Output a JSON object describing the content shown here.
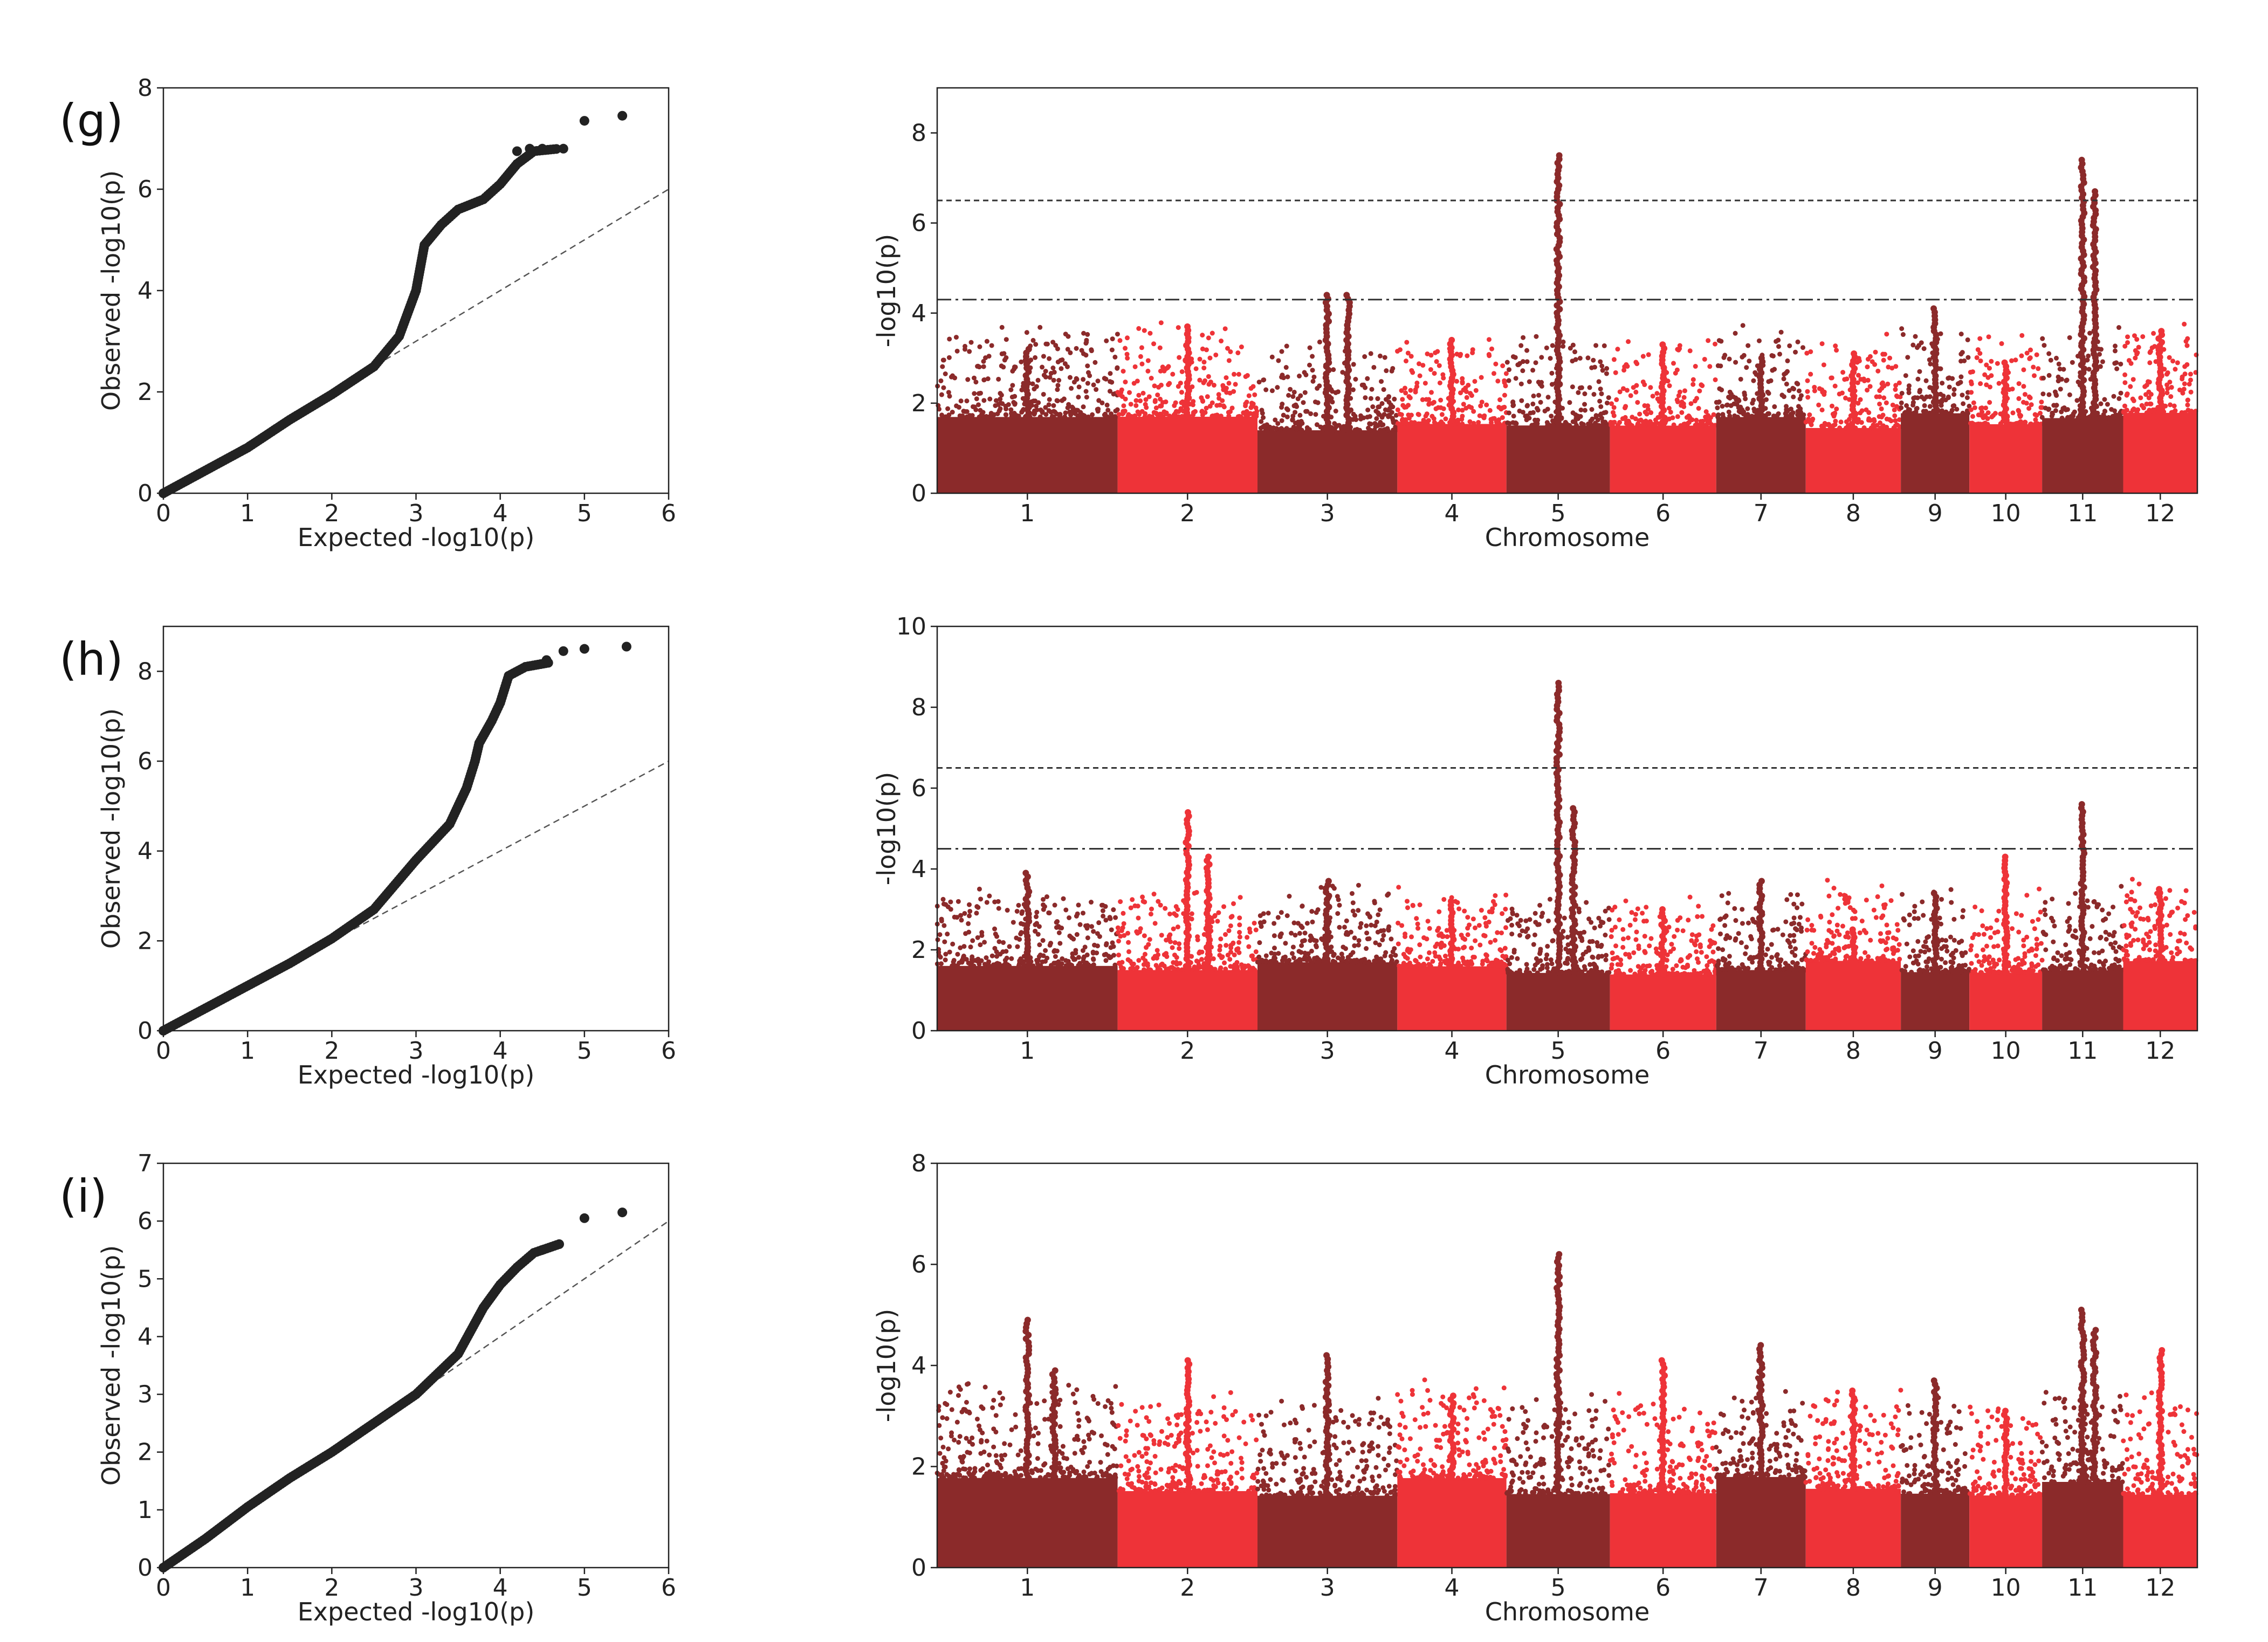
{
  "chart_data": [
    {
      "type": "scatter",
      "panel_label": "(g)",
      "kind": "qq",
      "xlabel": "Expected -log10(p)",
      "ylabel": "Observed -log10(p)",
      "xlim": [
        0,
        6
      ],
      "ylim": [
        0,
        8
      ],
      "xticks": [
        0,
        1,
        2,
        3,
        4,
        5,
        6
      ],
      "yticks": [
        0,
        2,
        4,
        6,
        8
      ],
      "curve": [
        [
          0,
          0
        ],
        [
          0.5,
          0.45
        ],
        [
          1,
          0.9
        ],
        [
          1.5,
          1.45
        ],
        [
          2,
          1.95
        ],
        [
          2.5,
          2.5
        ],
        [
          2.8,
          3.1
        ],
        [
          3.0,
          4.0
        ],
        [
          3.1,
          4.9
        ],
        [
          3.3,
          5.3
        ],
        [
          3.5,
          5.6
        ],
        [
          3.8,
          5.8
        ],
        [
          4.0,
          6.1
        ],
        [
          4.2,
          6.5
        ],
        [
          4.4,
          6.75
        ],
        [
          4.7,
          6.8
        ]
      ],
      "top_points": [
        [
          4.2,
          6.75
        ],
        [
          4.35,
          6.8
        ],
        [
          4.5,
          6.8
        ],
        [
          4.75,
          6.8
        ],
        [
          5.0,
          7.35
        ],
        [
          5.45,
          7.45
        ]
      ]
    },
    {
      "type": "scatter",
      "panel_label": "",
      "kind": "manhattan",
      "xlabel": "Chromosome",
      "ylabel": "-log10(p)",
      "ylim": [
        0,
        9
      ],
      "yticks": [
        0,
        2,
        4,
        6,
        8
      ],
      "categories": [
        "1",
        "2",
        "3",
        "4",
        "5",
        "6",
        "7",
        "8",
        "9",
        "10",
        "11",
        "12"
      ],
      "thresholds": [
        6.5,
        4.3
      ],
      "peaks": [
        {
          "chrom": 1,
          "value": 3.2
        },
        {
          "chrom": 2,
          "value": 3.7
        },
        {
          "chrom": 3,
          "value": 4.4
        },
        {
          "chrom": 3,
          "value": 4.4
        },
        {
          "chrom": 4,
          "value": 3.4
        },
        {
          "chrom": 5,
          "value": 7.5
        },
        {
          "chrom": 6,
          "value": 3.3
        },
        {
          "chrom": 7,
          "value": 3.0
        },
        {
          "chrom": 8,
          "value": 3.1
        },
        {
          "chrom": 9,
          "value": 4.1
        },
        {
          "chrom": 10,
          "value": 2.9
        },
        {
          "chrom": 11,
          "value": 7.4
        },
        {
          "chrom": 11,
          "value": 6.7
        },
        {
          "chrom": 12,
          "value": 3.6
        }
      ]
    },
    {
      "type": "scatter",
      "panel_label": "(h)",
      "kind": "qq",
      "xlabel": "Expected -log10(p)",
      "ylabel": "Observed -log10(p)",
      "xlim": [
        0,
        6
      ],
      "ylim": [
        0,
        9
      ],
      "xticks": [
        0,
        1,
        2,
        3,
        4,
        5,
        6
      ],
      "yticks": [
        0,
        2,
        4,
        6,
        8
      ],
      "curve": [
        [
          0,
          0
        ],
        [
          0.5,
          0.5
        ],
        [
          1,
          1.0
        ],
        [
          1.5,
          1.5
        ],
        [
          2,
          2.05
        ],
        [
          2.5,
          2.7
        ],
        [
          3.0,
          3.8
        ],
        [
          3.4,
          4.6
        ],
        [
          3.6,
          5.4
        ],
        [
          3.7,
          6.0
        ],
        [
          3.75,
          6.4
        ],
        [
          3.9,
          6.9
        ],
        [
          4.0,
          7.3
        ],
        [
          4.1,
          7.9
        ],
        [
          4.3,
          8.1
        ],
        [
          4.6,
          8.2
        ]
      ],
      "top_points": [
        [
          4.55,
          8.25
        ],
        [
          4.75,
          8.45
        ],
        [
          5.0,
          8.5
        ],
        [
          5.5,
          8.55
        ]
      ]
    },
    {
      "type": "scatter",
      "panel_label": "",
      "kind": "manhattan",
      "xlabel": "Chromosome",
      "ylabel": "-log10(p)",
      "ylim": [
        0,
        10
      ],
      "yticks": [
        0,
        2,
        4,
        6,
        8,
        10
      ],
      "categories": [
        "1",
        "2",
        "3",
        "4",
        "5",
        "6",
        "7",
        "8",
        "9",
        "10",
        "11",
        "12"
      ],
      "thresholds": [
        6.5,
        4.5
      ],
      "peaks": [
        {
          "chrom": 1,
          "value": 3.9
        },
        {
          "chrom": 2,
          "value": 5.4
        },
        {
          "chrom": 2,
          "value": 4.3
        },
        {
          "chrom": 3,
          "value": 3.7
        },
        {
          "chrom": 4,
          "value": 3.2
        },
        {
          "chrom": 5,
          "value": 8.6
        },
        {
          "chrom": 5,
          "value": 5.5
        },
        {
          "chrom": 6,
          "value": 3.0
        },
        {
          "chrom": 7,
          "value": 3.7
        },
        {
          "chrom": 8,
          "value": 2.5
        },
        {
          "chrom": 9,
          "value": 3.4
        },
        {
          "chrom": 10,
          "value": 4.3
        },
        {
          "chrom": 11,
          "value": 5.6
        },
        {
          "chrom": 12,
          "value": 3.5
        }
      ]
    },
    {
      "type": "scatter",
      "panel_label": "(i)",
      "kind": "qq",
      "xlabel": "Expected -log10(p)",
      "ylabel": "Observed -log10(p)",
      "xlim": [
        0,
        6
      ],
      "ylim": [
        0,
        7
      ],
      "xticks": [
        0,
        1,
        2,
        3,
        4,
        5,
        6
      ],
      "yticks": [
        0,
        1,
        2,
        3,
        4,
        5,
        6,
        7
      ],
      "curve": [
        [
          0,
          0
        ],
        [
          0.5,
          0.5
        ],
        [
          1,
          1.05
        ],
        [
          1.5,
          1.55
        ],
        [
          2,
          2.0
        ],
        [
          2.5,
          2.5
        ],
        [
          3.0,
          3.0
        ],
        [
          3.5,
          3.7
        ],
        [
          3.8,
          4.5
        ],
        [
          4.0,
          4.9
        ],
        [
          4.2,
          5.2
        ],
        [
          4.4,
          5.45
        ],
        [
          4.7,
          5.6
        ]
      ],
      "top_points": [
        [
          4.5,
          5.5
        ],
        [
          4.7,
          5.6
        ],
        [
          5.0,
          6.05
        ],
        [
          5.45,
          6.15
        ]
      ]
    },
    {
      "type": "scatter",
      "panel_label": "",
      "kind": "manhattan",
      "xlabel": "Chromosome",
      "ylabel": "-log10(p)",
      "ylim": [
        0,
        8
      ],
      "yticks": [
        0,
        2,
        4,
        6,
        8
      ],
      "categories": [
        "1",
        "2",
        "3",
        "4",
        "5",
        "6",
        "7",
        "8",
        "9",
        "10",
        "11",
        "12"
      ],
      "thresholds": [],
      "peaks": [
        {
          "chrom": 1,
          "value": 4.9
        },
        {
          "chrom": 1,
          "value": 3.9
        },
        {
          "chrom": 2,
          "value": 4.1
        },
        {
          "chrom": 3,
          "value": 4.2
        },
        {
          "chrom": 4,
          "value": 3.4
        },
        {
          "chrom": 5,
          "value": 6.2
        },
        {
          "chrom": 6,
          "value": 4.1
        },
        {
          "chrom": 7,
          "value": 4.4
        },
        {
          "chrom": 8,
          "value": 3.5
        },
        {
          "chrom": 9,
          "value": 3.7
        },
        {
          "chrom": 10,
          "value": 3.1
        },
        {
          "chrom": 11,
          "value": 5.1
        },
        {
          "chrom": 11,
          "value": 4.7
        },
        {
          "chrom": 12,
          "value": 4.3
        }
      ]
    }
  ],
  "colors": {
    "dark": "#8b2a2a",
    "light": "#ee3338",
    "qq_point": "#222222",
    "axis": "#222222"
  }
}
